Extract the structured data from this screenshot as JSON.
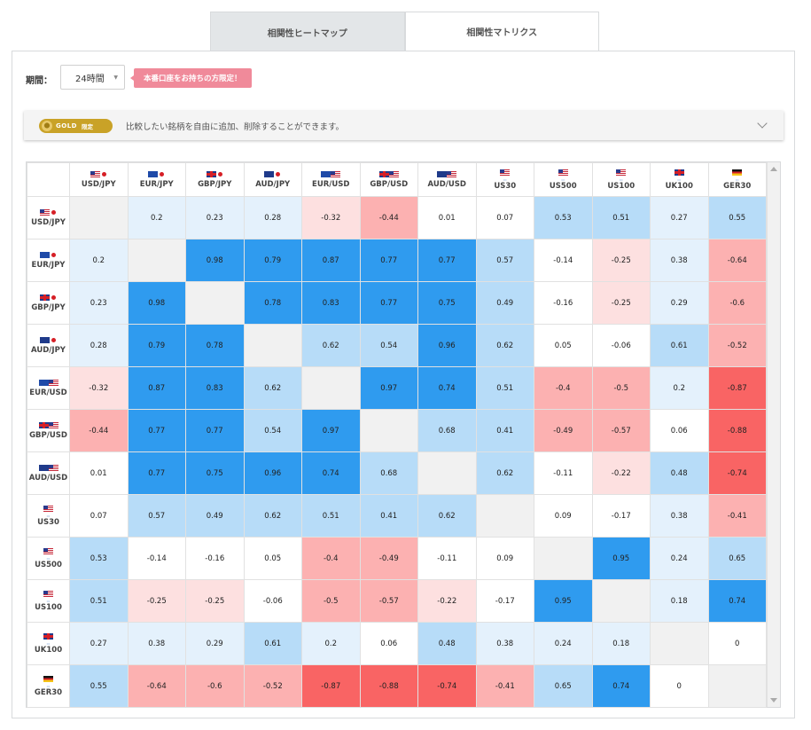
{
  "tabs": [
    {
      "label": "相関性ヒートマップ",
      "active": false
    },
    {
      "label": "相関性マトリクス",
      "active": true
    }
  ],
  "filter": {
    "period_label": "期間：",
    "period_value": "24時間",
    "promo_text": "本番口座をお持ちの方限定！"
  },
  "gold": {
    "badge_word": "GOLD",
    "badge_limited": "限定",
    "text": "比較したい銘柄を自由に追加、削除することができます。"
  },
  "colors": {
    "strong_pos": "#2f9bef",
    "mid_pos": "#b7dcf8",
    "weak_pos": "#e4f1fc",
    "diag": "#f1f1f1",
    "weak_neg": "#fde0e0",
    "mid_neg": "#fcb1b1",
    "strong_neg": "#f96464"
  },
  "instruments": [
    {
      "label": "USD/JPY",
      "flag": [
        "us",
        "jp"
      ]
    },
    {
      "label": "EUR/JPY",
      "flag": [
        "eu",
        "jp"
      ]
    },
    {
      "label": "GBP/JPY",
      "flag": [
        "gb",
        "jp"
      ]
    },
    {
      "label": "AUD/JPY",
      "flag": [
        "au",
        "jp"
      ]
    },
    {
      "label": "EUR/USD",
      "flag": [
        "eu",
        "us"
      ]
    },
    {
      "label": "GBP/USD",
      "flag": [
        "gb",
        "us"
      ]
    },
    {
      "label": "AUD/USD",
      "flag": [
        "au",
        "us"
      ]
    },
    {
      "label": "US30",
      "flag": [
        "us"
      ],
      "index": true
    },
    {
      "label": "US500",
      "flag": [
        "us"
      ],
      "index": true
    },
    {
      "label": "US100",
      "flag": [
        "us"
      ],
      "index": true
    },
    {
      "label": "UK100",
      "flag": [
        "gb"
      ],
      "index": true
    },
    {
      "label": "GER30",
      "flag": [
        "de"
      ],
      "index": true
    }
  ],
  "matrix": [
    [
      "",
      "0.2",
      "0.23",
      "0.28",
      "-0.32",
      "-0.44",
      "0.01",
      "0.07",
      "0.53",
      "0.51",
      "0.27",
      "0.55"
    ],
    [
      "0.2",
      "",
      "0.98",
      "0.79",
      "0.87",
      "0.77",
      "0.77",
      "0.57",
      "-0.14",
      "-0.25",
      "0.38",
      "-0.64"
    ],
    [
      "0.23",
      "0.98",
      "",
      "0.78",
      "0.83",
      "0.77",
      "0.75",
      "0.49",
      "-0.16",
      "-0.25",
      "0.29",
      "-0.6"
    ],
    [
      "0.28",
      "0.79",
      "0.78",
      "",
      "0.62",
      "0.54",
      "0.96",
      "0.62",
      "0.05",
      "-0.06",
      "0.61",
      "-0.52"
    ],
    [
      "-0.32",
      "0.87",
      "0.83",
      "0.62",
      "",
      "0.97",
      "0.74",
      "0.51",
      "-0.4",
      "-0.5",
      "0.2",
      "-0.87"
    ],
    [
      "-0.44",
      "0.77",
      "0.77",
      "0.54",
      "0.97",
      "",
      "0.68",
      "0.41",
      "-0.49",
      "-0.57",
      "0.06",
      "-0.88"
    ],
    [
      "0.01",
      "0.77",
      "0.75",
      "0.96",
      "0.74",
      "0.68",
      "",
      "0.62",
      "-0.11",
      "-0.22",
      "0.48",
      "-0.74"
    ],
    [
      "0.07",
      "0.57",
      "0.49",
      "0.62",
      "0.51",
      "0.41",
      "0.62",
      "",
      "0.09",
      "-0.17",
      "0.38",
      "-0.41"
    ],
    [
      "0.53",
      "-0.14",
      "-0.16",
      "0.05",
      "-0.4",
      "-0.49",
      "-0.11",
      "0.09",
      "",
      "0.95",
      "0.24",
      "0.65"
    ],
    [
      "0.51",
      "-0.25",
      "-0.25",
      "-0.06",
      "-0.5",
      "-0.57",
      "-0.22",
      "-0.17",
      "0.95",
      "",
      "0.18",
      "0.74"
    ],
    [
      "0.27",
      "0.38",
      "0.29",
      "0.61",
      "0.2",
      "0.06",
      "0.48",
      "0.38",
      "0.24",
      "0.18",
      "",
      "0"
    ],
    [
      "0.55",
      "-0.64",
      "-0.6",
      "-0.52",
      "-0.87",
      "-0.88",
      "-0.74",
      "-0.41",
      "0.65",
      "0.74",
      "0",
      ""
    ]
  ]
}
